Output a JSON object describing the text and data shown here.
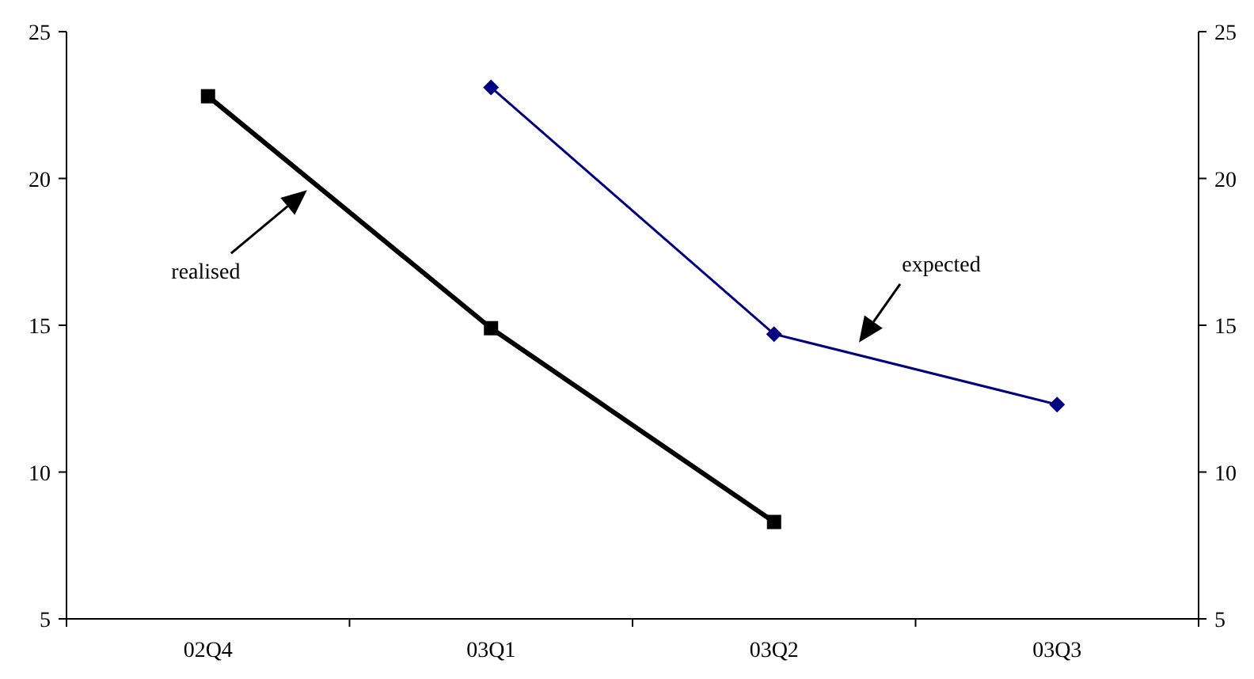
{
  "chart_data": {
    "type": "line",
    "categories": [
      "02Q4",
      "03Q1",
      "03Q2",
      "03Q3"
    ],
    "series": [
      {
        "color": "#000000",
        "values": [
          22.8,
          14.9,
          8.3,
          null
        ],
        "marker": "square"
      },
      {
        "color": "#000080",
        "values": [
          null,
          23.1,
          14.7,
          12.3
        ],
        "marker": "diamond"
      }
    ],
    "ylim": [
      5,
      25
    ],
    "yticks": [
      5,
      10,
      15,
      20,
      25
    ],
    "y2lim": [
      5,
      25
    ],
    "y2ticks": [
      5,
      10,
      15,
      20,
      25
    ],
    "grid": false,
    "line_style": "solid",
    "annotations": [
      "realised",
      "expected"
    ]
  }
}
